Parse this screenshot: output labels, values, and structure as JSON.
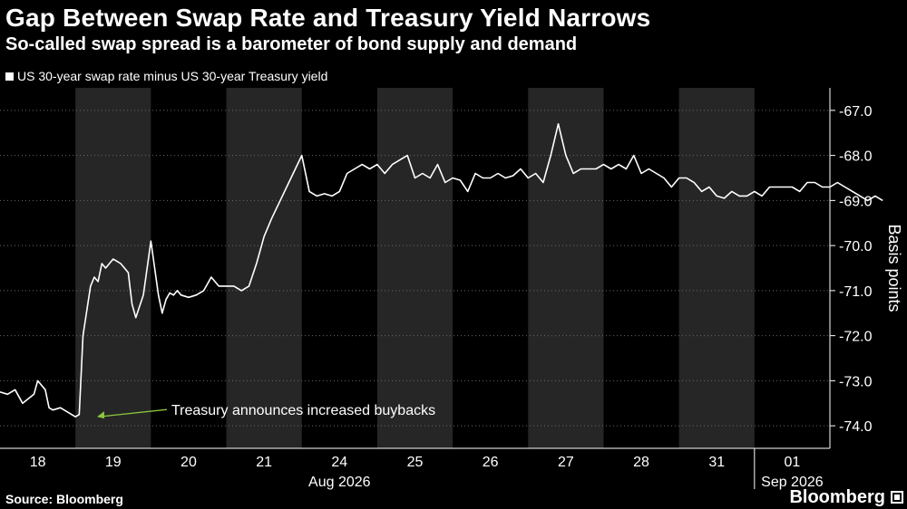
{
  "title": "Gap Between Swap Rate and Treasury Yield Narrows",
  "subtitle": "So-called swap spread is a barometer of bond supply and demand",
  "source": "Source: Bloomberg",
  "brand": "Bloomberg",
  "chart_data": {
    "type": "line",
    "legend": [
      "US 30-year swap rate minus US 30-year Treasury yield"
    ],
    "ylabel": "Basis points",
    "ylim": [
      -74.5,
      -66.5
    ],
    "yticks": [
      -67.0,
      -68.0,
      -69.0,
      -70.0,
      -71.0,
      -72.0,
      -73.0,
      -74.0
    ],
    "y_axis_position": "right",
    "y_inverted": true,
    "x_days": [
      "18",
      "19",
      "20",
      "21",
      "24",
      "25",
      "26",
      "27",
      "28",
      "31",
      "01"
    ],
    "x_period_labels": [
      {
        "label": "Aug 2026",
        "at_day": "24"
      },
      {
        "label": "Sep 2026",
        "at_day": "01"
      }
    ],
    "alternate_day_shading": true,
    "series": [
      {
        "name": "US 30-year swap rate minus US 30-year Treasury yield",
        "color": "#ffffff",
        "x": [
          18.0,
          18.1,
          18.2,
          18.3,
          18.45,
          18.5,
          18.6,
          18.65,
          18.7,
          18.8,
          18.9,
          19.0,
          19.05,
          19.1,
          19.2,
          19.25,
          19.3,
          19.35,
          19.4,
          19.5,
          19.6,
          19.7,
          19.75,
          19.8,
          19.9,
          20.0,
          20.1,
          20.15,
          20.2,
          20.25,
          20.3,
          20.35,
          20.4,
          20.5,
          20.6,
          20.7,
          20.8,
          20.9,
          21.0,
          21.1,
          21.2,
          21.3,
          21.4,
          21.5,
          21.6,
          22.0,
          22.1,
          22.2,
          22.3,
          22.4,
          22.5,
          22.6,
          22.7,
          22.8,
          22.9,
          23.0,
          23.1,
          23.2,
          23.3,
          23.4,
          23.5,
          23.6,
          23.7,
          23.8,
          23.9,
          24.0,
          24.1,
          24.2,
          24.3,
          24.4,
          24.5,
          24.6,
          24.7,
          24.8,
          24.9,
          25.0,
          25.1,
          25.2,
          25.3,
          25.4,
          25.5,
          25.6,
          25.7,
          25.8,
          25.9,
          26.0,
          26.1,
          26.2,
          26.3,
          26.4,
          26.5,
          26.6,
          26.7,
          26.8,
          26.9,
          27.0,
          27.1,
          27.2,
          27.3,
          27.4,
          27.5,
          27.6,
          27.7,
          27.8,
          27.9,
          28.0,
          28.1,
          28.2,
          28.3,
          28.4,
          28.5,
          28.6,
          28.7,
          28.8,
          28.9,
          29.0,
          29.1,
          29.2,
          29.3,
          29.4,
          29.5,
          29.6,
          29.7
        ],
        "y": [
          -73.25,
          -73.3,
          -73.2,
          -73.5,
          -73.3,
          -73.0,
          -73.2,
          -73.6,
          -73.65,
          -73.6,
          -73.7,
          -73.8,
          -73.75,
          -72.0,
          -70.9,
          -70.7,
          -70.8,
          -70.4,
          -70.5,
          -70.3,
          -70.4,
          -70.6,
          -71.3,
          -71.6,
          -71.1,
          -69.9,
          -71.1,
          -71.5,
          -71.2,
          -71.05,
          -71.1,
          -71.0,
          -71.1,
          -71.15,
          -71.1,
          -71.0,
          -70.7,
          -70.9,
          -70.9,
          -70.9,
          -71.0,
          -70.9,
          -70.4,
          -69.8,
          -69.4,
          -68.0,
          -68.8,
          -68.9,
          -68.85,
          -68.9,
          -68.8,
          -68.4,
          -68.3,
          -68.2,
          -68.3,
          -68.2,
          -68.4,
          -68.2,
          -68.1,
          -68.0,
          -68.5,
          -68.4,
          -68.5,
          -68.2,
          -68.6,
          -68.5,
          -68.55,
          -68.8,
          -68.4,
          -68.5,
          -68.5,
          -68.4,
          -68.5,
          -68.45,
          -68.3,
          -68.5,
          -68.4,
          -68.6,
          -68.0,
          -67.3,
          -68.0,
          -68.4,
          -68.3,
          -68.3,
          -68.3,
          -68.2,
          -68.3,
          -68.2,
          -68.3,
          -68.0,
          -68.4,
          -68.3,
          -68.4,
          -68.5,
          -68.7,
          -68.5,
          -68.5,
          -68.6,
          -68.8,
          -68.7,
          -68.9,
          -68.95,
          -68.8,
          -68.9,
          -68.9,
          -68.8,
          -68.9,
          -68.7,
          -68.7,
          -68.7,
          -68.7,
          -68.8,
          -68.6,
          -68.6,
          -68.7,
          -68.7,
          -68.6,
          -68.7,
          -68.8,
          -68.9,
          -69.0,
          -68.9,
          -69.0
        ]
      }
    ],
    "annotations": [
      {
        "text": "Treasury announces increased buybacks",
        "x": 19.25,
        "y": -73.8,
        "color": "#8dc63f"
      }
    ]
  }
}
